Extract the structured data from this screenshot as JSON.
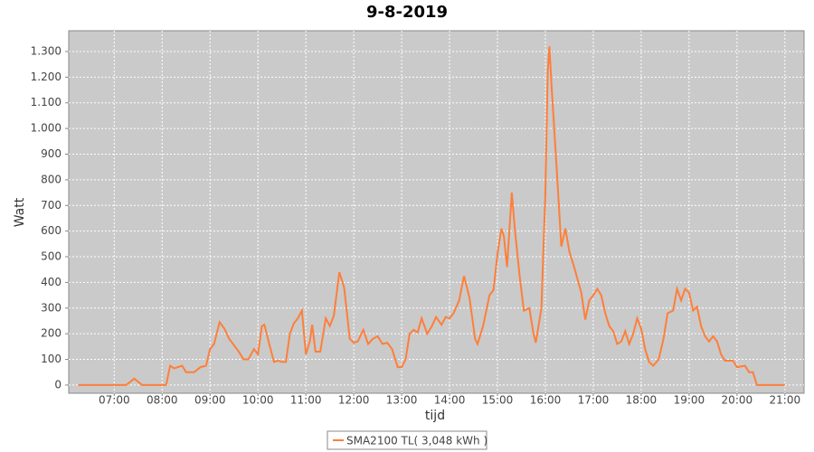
{
  "chart_data": {
    "type": "line",
    "title": "9-8-2019",
    "x_label": "tijd",
    "y_label": "Watt",
    "x": [
      "06:15",
      "07:15",
      "07:25",
      "07:35",
      "08:00",
      "08:05",
      "08:10",
      "08:15",
      "08:25",
      "08:30",
      "08:40",
      "08:48",
      "08:55",
      "09:00",
      "09:05",
      "09:12",
      "09:18",
      "09:24",
      "09:36",
      "09:42",
      "09:48",
      "09:55",
      "10:00",
      "10:05",
      "10:08",
      "10:15",
      "10:20",
      "10:25",
      "10:30",
      "10:35",
      "10:40",
      "10:45",
      "10:50",
      "10:55",
      "11:00",
      "11:05",
      "11:08",
      "11:12",
      "11:18",
      "11:25",
      "11:30",
      "11:35",
      "11:42",
      "11:48",
      "11:55",
      "12:00",
      "12:05",
      "12:12",
      "12:18",
      "12:24",
      "12:30",
      "12:36",
      "12:42",
      "12:48",
      "12:55",
      "13:00",
      "13:05",
      "13:10",
      "13:15",
      "13:20",
      "13:25",
      "13:32",
      "13:38",
      "13:43",
      "13:50",
      "13:55",
      "14:00",
      "14:05",
      "14:12",
      "14:18",
      "14:25",
      "14:32",
      "14:35",
      "14:42",
      "14:50",
      "14:55",
      "15:00",
      "15:05",
      "15:08",
      "15:12",
      "15:18",
      "15:22",
      "15:28",
      "15:33",
      "15:40",
      "15:45",
      "15:48",
      "15:55",
      "16:00",
      "16:03",
      "16:05",
      "16:08",
      "16:14",
      "16:20",
      "16:25",
      "16:30",
      "16:36",
      "16:45",
      "16:50",
      "16:55",
      "17:00",
      "17:05",
      "17:10",
      "17:15",
      "17:20",
      "17:25",
      "17:30",
      "17:35",
      "17:40",
      "17:45",
      "17:50",
      "17:55",
      "18:00",
      "18:05",
      "18:10",
      "18:15",
      "18:22",
      "18:28",
      "18:33",
      "18:40",
      "18:45",
      "18:50",
      "18:55",
      "19:00",
      "19:05",
      "19:10",
      "19:15",
      "19:20",
      "19:25",
      "19:30",
      "19:35",
      "19:40",
      "19:45",
      "19:55",
      "20:00",
      "20:10",
      "20:15",
      "20:20",
      "20:25",
      "21:00"
    ],
    "series": [
      {
        "name": "SMA2100 TL( 3,048 kWh )",
        "color": "#fe7f3a",
        "values": [
          0,
          0,
          25,
          0,
          0,
          0,
          75,
          65,
          75,
          50,
          50,
          70,
          75,
          140,
          160,
          245,
          220,
          180,
          130,
          100,
          100,
          140,
          120,
          230,
          235,
          150,
          90,
          95,
          90,
          90,
          200,
          240,
          260,
          290,
          120,
          170,
          235,
          130,
          130,
          260,
          230,
          270,
          440,
          380,
          180,
          165,
          170,
          215,
          160,
          180,
          190,
          160,
          165,
          140,
          70,
          70,
          100,
          200,
          215,
          205,
          260,
          200,
          230,
          265,
          235,
          265,
          260,
          280,
          330,
          425,
          340,
          180,
          160,
          230,
          350,
          370,
          510,
          610,
          580,
          460,
          750,
          600,
          420,
          290,
          300,
          200,
          165,
          300,
          750,
          1220,
          1320,
          1150,
          850,
          540,
          610,
          520,
          460,
          360,
          255,
          330,
          350,
          375,
          350,
          280,
          230,
          210,
          160,
          170,
          210,
          160,
          200,
          260,
          220,
          140,
          90,
          75,
          100,
          180,
          280,
          290,
          375,
          330,
          375,
          360,
          290,
          305,
          230,
          190,
          170,
          190,
          170,
          120,
          95,
          95,
          70,
          75,
          50,
          50,
          0,
          0
        ]
      }
    ],
    "xlim": [
      "06:03",
      "21:24"
    ],
    "xticks": [
      "07:00",
      "08:00",
      "09:00",
      "10:00",
      "11:00",
      "12:00",
      "13:00",
      "14:00",
      "15:00",
      "16:00",
      "17:00",
      "18:00",
      "19:00",
      "20:00",
      "21:00"
    ],
    "ylim": [
      -32,
      1381
    ],
    "yticks": [
      0,
      100,
      200,
      300,
      400,
      500,
      600,
      700,
      800,
      900,
      {
        "value": 1000,
        "label": "1.000"
      },
      {
        "value": 1100,
        "label": "1.100"
      },
      {
        "value": 1200,
        "label": "1.200"
      },
      {
        "value": 1300,
        "label": "1.300"
      }
    ],
    "grid": true,
    "legend": "bottom"
  }
}
